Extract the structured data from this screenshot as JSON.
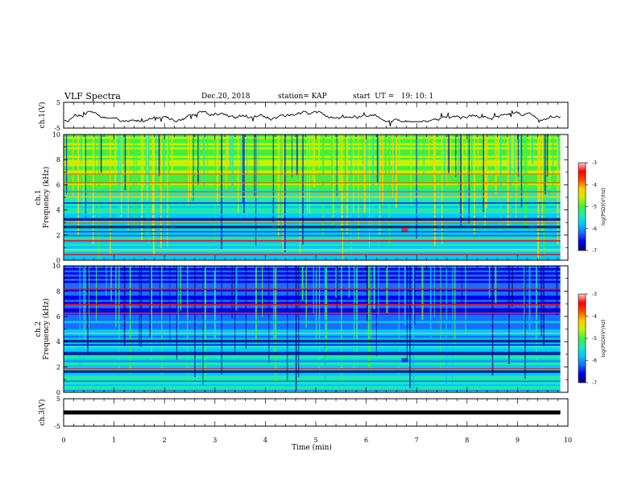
{
  "header": {
    "title": "VLF Spectra",
    "date": "Dec.20, 2018",
    "station": "station= KAP",
    "start": "start  UT =   19: 10: 1"
  },
  "chart_data": [
    {
      "type": "line",
      "panel": "ch1-waveform",
      "ylabel": "ch.1(V)",
      "ylim": [
        -5,
        5
      ],
      "yticks": [
        "5",
        "-5"
      ],
      "xlim": [
        0,
        10
      ],
      "series": [
        {
          "values_range": [
            -2.5,
            1.5
          ],
          "color": "#000000",
          "x_end": 9.85
        }
      ]
    },
    {
      "type": "heatmap",
      "panel": "ch1-spectrogram",
      "ylabel": [
        "ch.1",
        "Frequency (kHz)"
      ],
      "ylim": [
        0,
        10
      ],
      "yticks": [
        "0",
        "2",
        "4",
        "6",
        "8",
        "10"
      ],
      "xlim": [
        0,
        10
      ],
      "x_end": 9.85,
      "colorbar": {
        "label": "log(PSD)(V²/Hz)",
        "range": [
          -7,
          -3
        ],
        "ticks": [
          "-3",
          "-4",
          "-5",
          "-6",
          "-7"
        ]
      }
    },
    {
      "type": "heatmap",
      "panel": "ch2-spectrogram",
      "ylabel": [
        "ch.2",
        "Frequency (kHz)"
      ],
      "ylim": [
        0,
        10
      ],
      "yticks": [
        "0",
        "2",
        "4",
        "6",
        "8",
        "10"
      ],
      "xlim": [
        0,
        10
      ],
      "x_end": 9.85,
      "colorbar": {
        "label": "log(PSD)(V²/Hz)",
        "range": [
          -7,
          -3
        ],
        "ticks": [
          "-3",
          "-4",
          "-5",
          "-6",
          "-7"
        ]
      }
    },
    {
      "type": "line",
      "panel": "ch3-waveform",
      "ylabel": "ch.3(V)",
      "ylim": [
        -5,
        5
      ],
      "yticks": [
        "5",
        "-5"
      ],
      "xlim": [
        0,
        10
      ],
      "xlabel": "Time (min)",
      "xticks": [
        "0",
        "1",
        "2",
        "3",
        "4",
        "5",
        "6",
        "7",
        "8",
        "9",
        "10"
      ],
      "series": [
        {
          "value": 0,
          "color": "#000000",
          "x_end": 9.85
        }
      ]
    }
  ],
  "colormap": [
    "#00007a",
    "#0000e8",
    "#1a6cff",
    "#00c8ff",
    "#20e8b0",
    "#40f040",
    "#c8f000",
    "#ffd000",
    "#ff5000",
    "#ff0000",
    "#ffd0d0"
  ]
}
